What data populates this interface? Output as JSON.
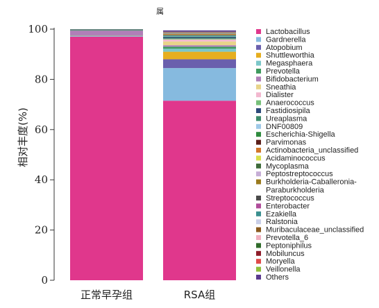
{
  "chart_data": {
    "type": "bar",
    "stacked": true,
    "title": "属",
    "xlabel": "",
    "ylabel": "相对丰度(%)",
    "ylim": [
      0,
      100
    ],
    "yticks": [
      0,
      20,
      40,
      60,
      80,
      100
    ],
    "categories": [
      "正常早孕组",
      "RSA组"
    ],
    "legend_position": "right",
    "grid": false,
    "series": [
      {
        "name": "Lactobacillus",
        "color": "#e0378c",
        "values": [
          97.0,
          71.5
        ]
      },
      {
        "name": "Gardnerella",
        "color": "#86badf",
        "values": [
          0.2,
          13.0
        ]
      },
      {
        "name": "Atopobium",
        "color": "#6a5fad",
        "values": [
          0.1,
          3.5
        ]
      },
      {
        "name": "Shuttleworthia",
        "color": "#e6ae1f",
        "values": [
          0.05,
          3.0
        ]
      },
      {
        "name": "Megasphaera",
        "color": "#7cc7c9",
        "values": [
          0.05,
          1.2
        ]
      },
      {
        "name": "Prevotella",
        "color": "#3f9a5e",
        "values": [
          0.05,
          0.8
        ]
      },
      {
        "name": "Bifidobacterium",
        "color": "#b07fb8",
        "values": [
          2.0,
          0.6
        ]
      },
      {
        "name": "Sneathia",
        "color": "#e8d48a",
        "values": [
          0.0,
          1.5
        ]
      },
      {
        "name": "Dialister",
        "color": "#f2b8cf",
        "values": [
          0.0,
          0.8
        ]
      },
      {
        "name": "Anaerococcus",
        "color": "#77c07a",
        "values": [
          0.05,
          0.4
        ]
      },
      {
        "name": "Fastidiosipila",
        "color": "#2d4a7a",
        "values": [
          0.0,
          0.5
        ]
      },
      {
        "name": "Ureaplasma",
        "color": "#3c8a6a",
        "values": [
          0.3,
          0.3
        ]
      },
      {
        "name": "DNF00809",
        "color": "#9fc9e8",
        "values": [
          0.0,
          0.3
        ]
      },
      {
        "name": "Escherichia-Shigella",
        "color": "#2e8b3e",
        "values": [
          0.05,
          0.2
        ]
      },
      {
        "name": "Parvimonas",
        "color": "#5a1f1a",
        "values": [
          0.0,
          0.2
        ]
      },
      {
        "name": "Actinobacteria_unclassified",
        "color": "#d2762a",
        "values": [
          0.0,
          0.2
        ]
      },
      {
        "name": "Acidaminococcus",
        "color": "#d9e04a",
        "values": [
          0.0,
          0.1
        ]
      },
      {
        "name": "Mycoplasma",
        "color": "#3e6b3a",
        "values": [
          0.0,
          0.1
        ]
      },
      {
        "name": "Peptostreptococcus",
        "color": "#c6aed6",
        "values": [
          0.0,
          0.1
        ]
      },
      {
        "name": "Burkholderia-Caballeronia-Paraburkholderia",
        "color": "#9a7a1e",
        "values": [
          0.0,
          0.1
        ]
      },
      {
        "name": "Streptococcus",
        "color": "#4a4a4a",
        "values": [
          0.05,
          0.1
        ]
      },
      {
        "name": "Enterobacter",
        "color": "#b04d9b",
        "values": [
          0.0,
          0.05
        ]
      },
      {
        "name": "Ezakiella",
        "color": "#3a8f8f",
        "values": [
          0.0,
          0.05
        ]
      },
      {
        "name": "Ralstonia",
        "color": "#c9cfe8",
        "values": [
          0.0,
          0.05
        ]
      },
      {
        "name": "Muribaculaceae_unclassified",
        "color": "#8a5a1e",
        "values": [
          0.0,
          0.05
        ]
      },
      {
        "name": "Prevotella_6",
        "color": "#f0b0c0",
        "values": [
          0.0,
          0.05
        ]
      },
      {
        "name": "Peptoniphilus",
        "color": "#2f6b2a",
        "values": [
          0.0,
          0.05
        ]
      },
      {
        "name": "Mobiluncus",
        "color": "#8e1d2a",
        "values": [
          0.0,
          0.05
        ]
      },
      {
        "name": "Moryella",
        "color": "#e04a4a",
        "values": [
          0.0,
          0.05
        ]
      },
      {
        "name": "Veillonella",
        "color": "#8fbf3a",
        "values": [
          0.0,
          0.05
        ]
      },
      {
        "name": "Others",
        "color": "#5a3a8f",
        "values": [
          0.05,
          0.55
        ]
      }
    ]
  }
}
